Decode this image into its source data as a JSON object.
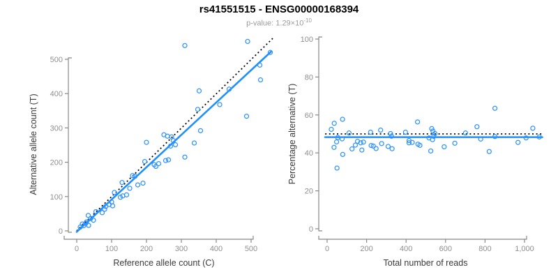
{
  "header": {
    "title": "rs41551515 - ENSG00000168394",
    "pvalue_prefix": "p-value: 1.29×10",
    "pvalue_exponent": "-10"
  },
  "colors": {
    "point_blue": "#2E93FF",
    "fit_blue": "#1E8FFF",
    "reference_black": "#000000",
    "axis_gray": "#888888",
    "tick_label_gray": "#8F8F8F",
    "axis_title_gray": "#3A3A3A",
    "title_black": "#000000",
    "subtitle_gray": "#9B9B9B",
    "background": "#FFFFFF"
  },
  "chart_data": [
    {
      "type": "scatter",
      "name": "allele-count-scatter",
      "xlabel": "Reference allele count (C)",
      "ylabel": "Alternative allele count (T)",
      "xticks": [
        0,
        100,
        200,
        300,
        400,
        500
      ],
      "yticks": [
        0,
        100,
        200,
        300,
        400,
        500
      ],
      "xlim": [
        0,
        562
      ],
      "ylim": [
        0,
        562
      ],
      "grid": false,
      "legend": "none",
      "lines": [
        {
          "name": "identity-line",
          "style": "dotted",
          "color": "#000000",
          "width": 1.8,
          "from": [
            0,
            0
          ],
          "to": [
            562,
            561
          ]
        },
        {
          "name": "fit-line",
          "style": "solid",
          "color": "#1E8FFF",
          "width": 2.6,
          "from": [
            0,
            -3
          ],
          "to": [
            558,
            523
          ]
        }
      ],
      "points": [
        [
          10,
          11
        ],
        [
          16,
          20
        ],
        [
          20,
          15
        ],
        [
          26,
          22
        ],
        [
          34,
          16
        ],
        [
          33,
          45
        ],
        [
          28,
          26
        ],
        [
          40,
          36
        ],
        [
          48,
          31
        ],
        [
          55,
          56
        ],
        [
          73,
          53
        ],
        [
          80,
          63
        ],
        [
          83,
          71
        ],
        [
          93,
          77
        ],
        [
          100,
          84
        ],
        [
          103,
          73
        ],
        [
          108,
          112
        ],
        [
          125,
          98
        ],
        [
          130,
          141
        ],
        [
          132,
          102
        ],
        [
          143,
          105
        ],
        [
          152,
          124
        ],
        [
          160,
          161
        ],
        [
          167,
          159
        ],
        [
          175,
          134
        ],
        [
          190,
          139
        ],
        [
          195,
          202
        ],
        [
          200,
          258
        ],
        [
          222,
          193
        ],
        [
          227,
          188
        ],
        [
          235,
          196
        ],
        [
          255,
          205
        ],
        [
          263,
          207
        ],
        [
          269,
          247
        ],
        [
          250,
          280
        ],
        [
          260,
          276
        ],
        [
          272,
          274
        ],
        [
          277,
          263
        ],
        [
          283,
          251
        ],
        [
          310,
          540
        ],
        [
          310,
          215
        ],
        [
          337,
          256
        ],
        [
          347,
          354
        ],
        [
          351,
          408
        ],
        [
          355,
          292
        ],
        [
          410,
          368
        ],
        [
          437,
          413
        ],
        [
          487,
          334
        ],
        [
          490,
          552
        ],
        [
          525,
          483
        ],
        [
          527,
          440
        ],
        [
          555,
          520
        ]
      ]
    },
    {
      "type": "scatter",
      "name": "percentage-alternative-scatter",
      "xlabel": "Total number of reads",
      "ylabel": "Percentage alternative (T)",
      "xticks": [
        0,
        200,
        400,
        600,
        800,
        1000
      ],
      "yticks": [
        0,
        20,
        40,
        60,
        80,
        100
      ],
      "xlim": [
        0,
        1090
      ],
      "ylim": [
        0,
        100
      ],
      "grid": false,
      "legend": "none",
      "lines": [
        {
          "name": "reference-line",
          "style": "dotted",
          "color": "#000000",
          "width": 1.8,
          "from": [
            -10,
            50
          ],
          "to": [
            1090,
            50
          ]
        },
        {
          "name": "fit-line",
          "style": "solid",
          "color": "#1E8FFF",
          "width": 2.6,
          "from": [
            -10,
            48.3
          ],
          "to": [
            1090,
            48.3
          ]
        }
      ],
      "points": [
        [
          21,
          52.4
        ],
        [
          36,
          55.6
        ],
        [
          35,
          42.9
        ],
        [
          48,
          45.8
        ],
        [
          50,
          32.0
        ],
        [
          78,
          57.7
        ],
        [
          54,
          48.1
        ],
        [
          76,
          47.4
        ],
        [
          79,
          39.2
        ],
        [
          111,
          50.5
        ],
        [
          126,
          42.1
        ],
        [
          143,
          44.1
        ],
        [
          154,
          46.1
        ],
        [
          170,
          45.3
        ],
        [
          184,
          45.7
        ],
        [
          176,
          41.5
        ],
        [
          220,
          50.9
        ],
        [
          223,
          43.9
        ],
        [
          271,
          52.0
        ],
        [
          234,
          43.6
        ],
        [
          248,
          42.3
        ],
        [
          276,
          44.9
        ],
        [
          321,
          50.2
        ],
        [
          326,
          48.8
        ],
        [
          309,
          43.4
        ],
        [
          329,
          42.2
        ],
        [
          397,
          50.9
        ],
        [
          458,
          56.3
        ],
        [
          415,
          46.5
        ],
        [
          415,
          45.3
        ],
        [
          431,
          45.5
        ],
        [
          460,
          44.6
        ],
        [
          470,
          44.0
        ],
        [
          516,
          47.9
        ],
        [
          530,
          52.8
        ],
        [
          536,
          51.5
        ],
        [
          546,
          50.2
        ],
        [
          540,
          48.7
        ],
        [
          534,
          47.0
        ],
        [
          850,
          63.5
        ],
        [
          525,
          41.0
        ],
        [
          593,
          43.2
        ],
        [
          701,
          50.5
        ],
        [
          759,
          53.8
        ],
        [
          647,
          45.1
        ],
        [
          778,
          47.3
        ],
        [
          850,
          48.6
        ],
        [
          821,
          40.7
        ],
        [
          1042,
          53.0
        ],
        [
          1008,
          47.9
        ],
        [
          967,
          45.5
        ],
        [
          1075,
          48.4
        ]
      ]
    }
  ]
}
